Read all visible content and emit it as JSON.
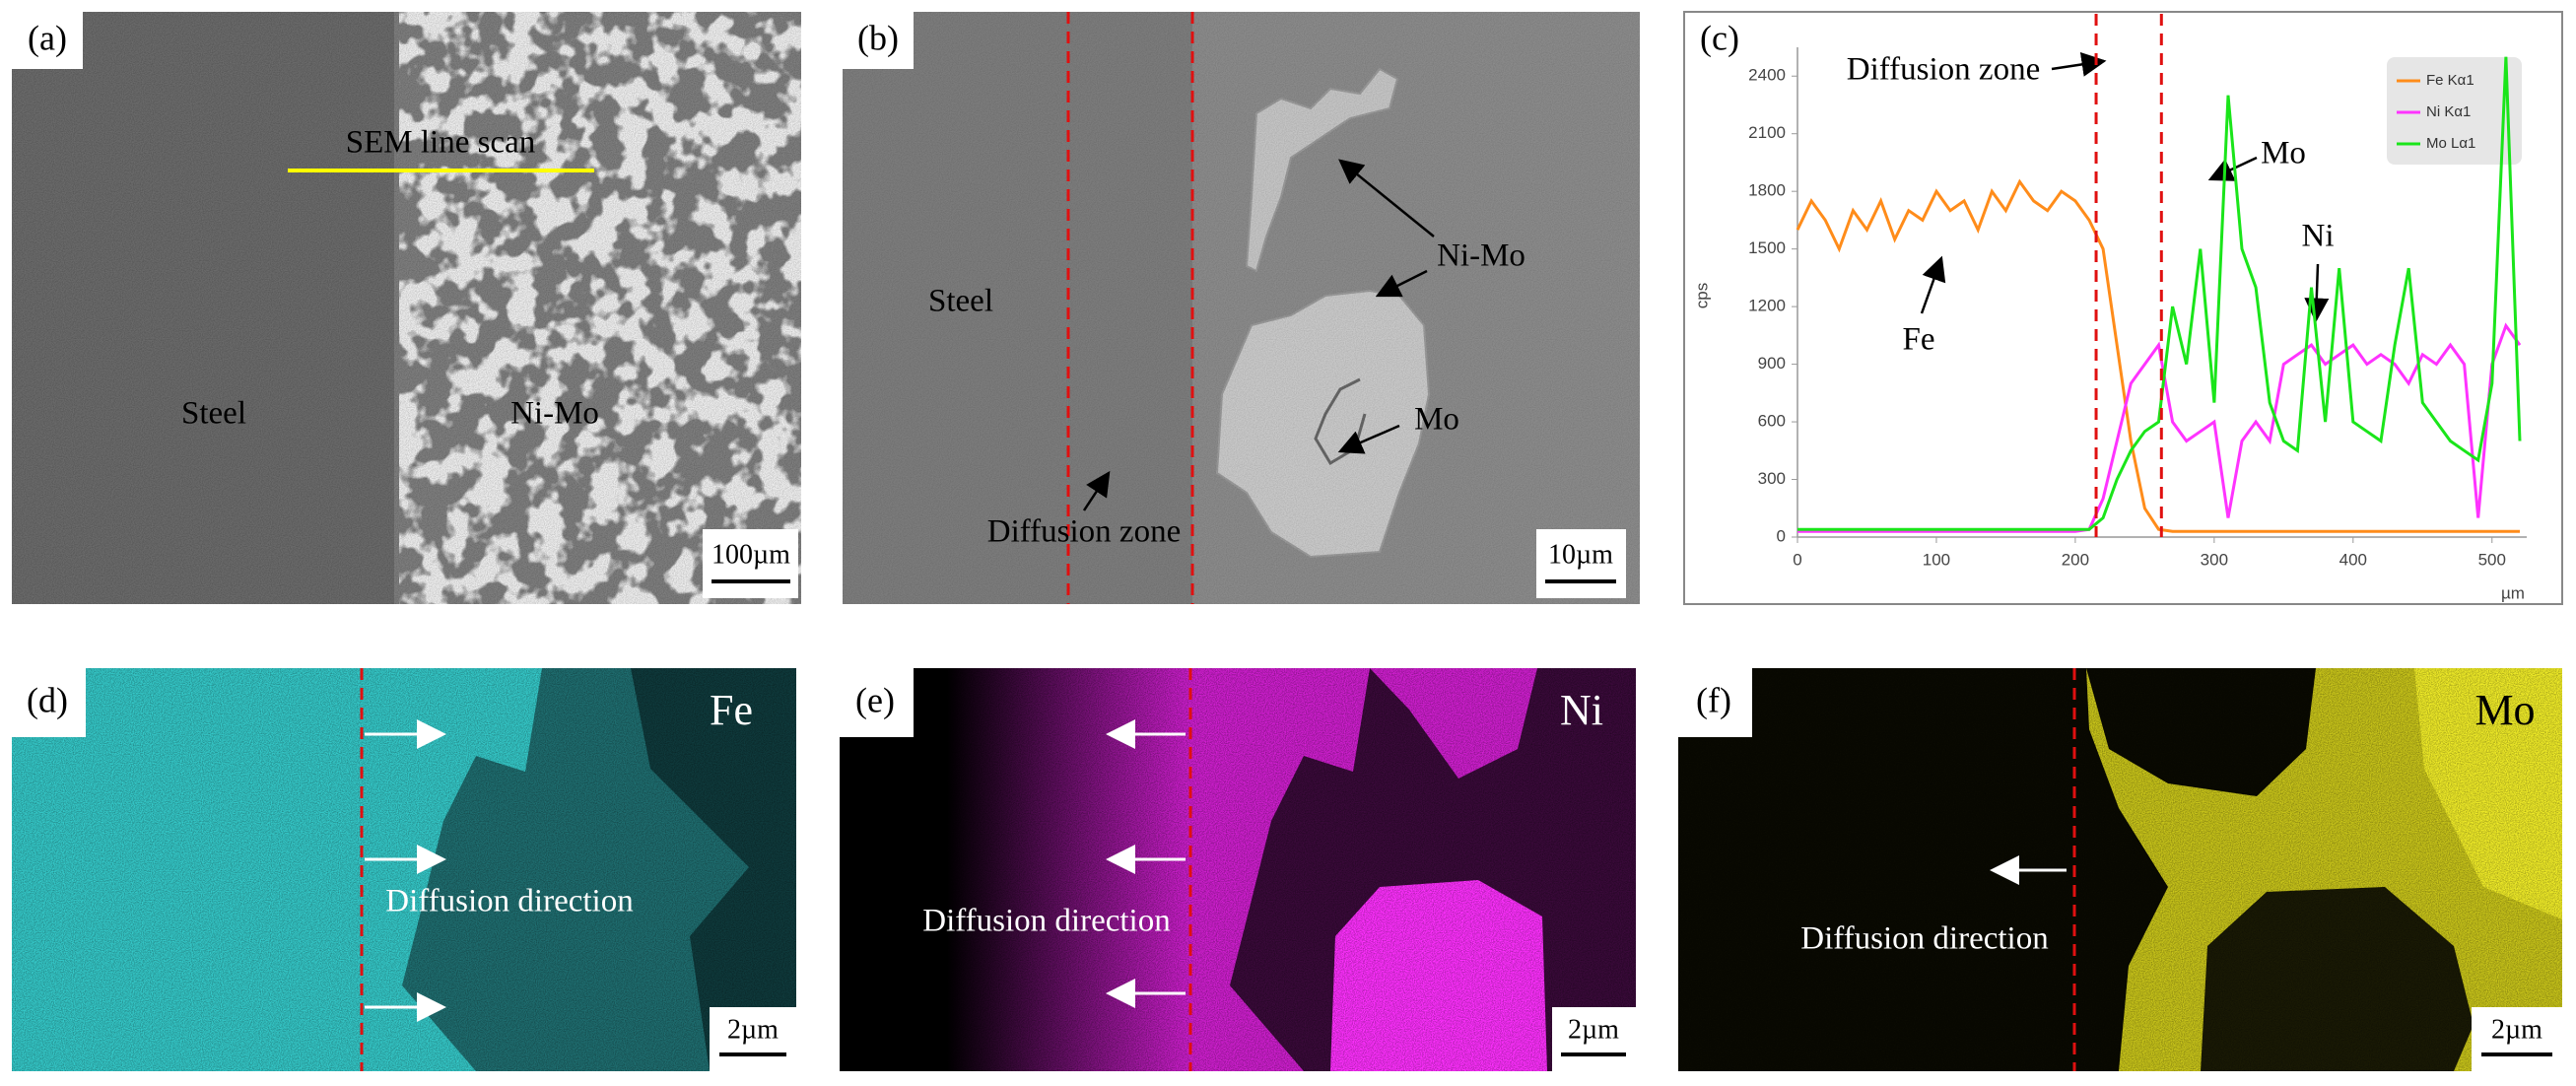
{
  "panels": [
    {
      "label": "(a)",
      "annotations": [
        "SEM line scan",
        "Steel",
        "Ni-Mo"
      ],
      "scale_bar": "100µm"
    },
    {
      "label": "(b)",
      "annotations": [
        "Steel",
        "Ni-Mo",
        "Mo",
        "Diffusion zone"
      ],
      "scale_bar": "10µm"
    },
    {
      "label": "(c)"
    },
    {
      "label": "(d)",
      "element": "Fe",
      "annotations": [
        "Diffusion direction"
      ],
      "scale_bar": "2µm"
    },
    {
      "label": "(e)",
      "element": "Ni",
      "annotations": [
        "Diffusion direction"
      ],
      "scale_bar": "2µm"
    },
    {
      "label": "(f)",
      "element": "Mo",
      "annotations": [
        "Diffusion direction"
      ],
      "scale_bar": "2µm"
    }
  ],
  "chart_data": {
    "type": "line",
    "xlabel": "µm",
    "ylabel": "cps",
    "annotations": [
      "Diffusion zone",
      "Fe",
      "Ni",
      "Mo"
    ],
    "zone_x": [
      215,
      262
    ],
    "x": [
      0,
      10,
      20,
      30,
      40,
      50,
      60,
      70,
      80,
      90,
      100,
      110,
      120,
      130,
      140,
      150,
      160,
      170,
      180,
      190,
      200,
      210,
      220,
      230,
      240,
      250,
      260,
      270,
      280,
      290,
      300,
      310,
      320,
      330,
      340,
      350,
      360,
      370,
      380,
      390,
      400,
      410,
      420,
      430,
      440,
      450,
      460,
      470,
      480,
      490,
      500,
      510,
      520
    ],
    "series": [
      {
        "name": "Fe Kα1",
        "color": "#ff8c1a",
        "values": [
          1600,
          1750,
          1650,
          1500,
          1700,
          1600,
          1750,
          1550,
          1700,
          1650,
          1800,
          1700,
          1750,
          1600,
          1800,
          1700,
          1850,
          1750,
          1700,
          1800,
          1750,
          1650,
          1500,
          1000,
          500,
          150,
          40,
          30,
          30,
          30,
          30,
          30,
          30,
          30,
          30,
          30,
          30,
          30,
          30,
          30,
          30,
          30,
          30,
          30,
          30,
          30,
          30,
          30,
          30,
          30,
          30,
          30,
          30
        ]
      },
      {
        "name": "Ni Kα1",
        "color": "#ff33ff",
        "values": [
          30,
          30,
          30,
          30,
          30,
          30,
          30,
          30,
          30,
          30,
          30,
          30,
          30,
          30,
          30,
          30,
          30,
          30,
          30,
          30,
          30,
          40,
          200,
          500,
          800,
          900,
          1000,
          600,
          500,
          550,
          600,
          100,
          500,
          600,
          500,
          900,
          950,
          1000,
          900,
          950,
          1000,
          900,
          950,
          900,
          800,
          950,
          900,
          1000,
          900,
          100,
          900,
          1100,
          1000
        ]
      },
      {
        "name": "Mo Lα1",
        "color": "#1ae51a",
        "values": [
          40,
          40,
          40,
          40,
          40,
          40,
          40,
          40,
          40,
          40,
          40,
          40,
          40,
          40,
          40,
          40,
          40,
          40,
          40,
          40,
          40,
          40,
          100,
          300,
          450,
          550,
          600,
          1200,
          900,
          1500,
          700,
          2300,
          1500,
          1300,
          700,
          500,
          450,
          1300,
          600,
          1400,
          600,
          550,
          500,
          1000,
          1400,
          700,
          600,
          500,
          450,
          400,
          800,
          2500,
          500
        ]
      }
    ],
    "xlim": [
      0,
      525
    ],
    "ylim": [
      0,
      2550
    ],
    "xticks": [
      0,
      100,
      200,
      300,
      400,
      500
    ],
    "yticks": [
      0,
      300,
      600,
      900,
      1200,
      1500,
      1800,
      2100,
      2400
    ],
    "legend": "upper right"
  }
}
